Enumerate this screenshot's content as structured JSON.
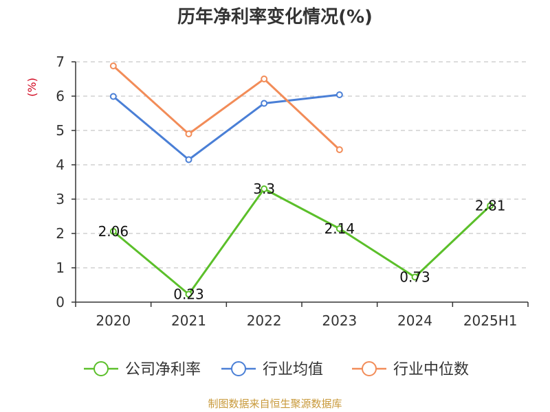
{
  "title": "历年净利率变化情况(%)",
  "source": "制图数据来自恒生聚源数据库",
  "chart_data": {
    "type": "line",
    "ylabel": "(%)",
    "ylim": [
      0,
      7
    ],
    "yticks": [
      0,
      1,
      2,
      3,
      4,
      5,
      6,
      7
    ],
    "grid": true,
    "legend_position": "bottom",
    "categories": [
      "2020",
      "2021",
      "2022",
      "2023",
      "2024",
      "2025H1"
    ],
    "series": [
      {
        "name": "公司净利率",
        "color": "#5bbf2a",
        "values": [
          2.06,
          0.23,
          3.3,
          2.14,
          0.73,
          2.81
        ],
        "labels": [
          "2.06",
          "0.23",
          "3.3",
          "2.14",
          "0.73",
          "2.81"
        ]
      },
      {
        "name": "行业均值",
        "color": "#4a7fd6",
        "values": [
          5.99,
          4.15,
          5.79,
          6.04,
          null,
          null
        ]
      },
      {
        "name": "行业中位数",
        "color": "#f28c58",
        "values": [
          6.88,
          4.9,
          6.5,
          4.44,
          null,
          null
        ]
      }
    ]
  }
}
